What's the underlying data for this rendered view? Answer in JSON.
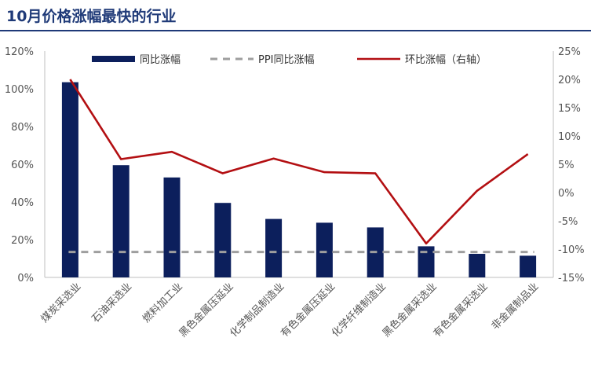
{
  "page": {
    "title": "10月价格涨幅最快的行业"
  },
  "chart_data": {
    "type": "bar",
    "categories": [
      "煤炭采选业",
      "石油采选业",
      "燃料加工业",
      "黑色金属压延业",
      "化学制品制造业",
      "有色金属压延业",
      "化学纤维制造业",
      "黑色金属采选业",
      "有色金属采选业",
      "非金属制品业"
    ],
    "series": [
      {
        "name": "同比涨幅",
        "type": "bar",
        "axis": "left",
        "color": "#0c1f5c",
        "values": [
          103.5,
          59.5,
          53,
          39.5,
          31,
          29,
          26.5,
          16.5,
          12.5,
          11.5
        ]
      },
      {
        "name": "PPI同比涨幅",
        "type": "line",
        "axis": "left",
        "style": "dashed",
        "color": "#9e9e9e",
        "values": [
          13.5,
          13.5,
          13.5,
          13.5,
          13.5,
          13.5,
          13.5,
          13.5,
          13.5,
          13.5
        ]
      },
      {
        "name": "环比涨幅（右轴）",
        "type": "line",
        "axis": "right",
        "color": "#b30f12",
        "values": [
          20,
          5.9,
          7.2,
          3.4,
          6,
          3.6,
          3.4,
          -9,
          0.3,
          6.8
        ]
      }
    ],
    "y_left": {
      "min": 0,
      "max": 120,
      "step": 20,
      "format": "percent"
    },
    "y_right": {
      "min": -15,
      "max": 25,
      "step": 5,
      "format": "percent"
    },
    "legend_position": "top",
    "grid": false
  }
}
